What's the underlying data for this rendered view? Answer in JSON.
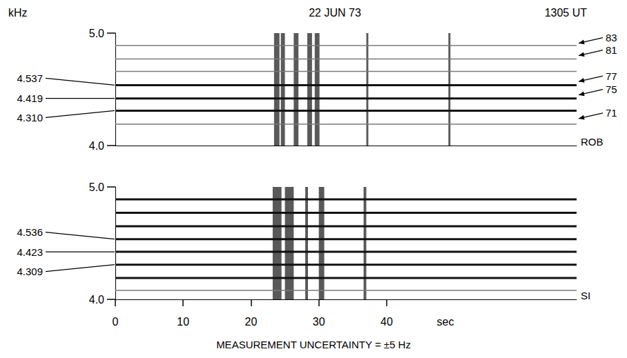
{
  "chart_data": [
    {
      "type": "spectrogram",
      "title": "22 JUN 73",
      "subtitle": "1305 UT",
      "ylabel": "kHz",
      "station": "ROB",
      "xlim": [
        0,
        68
      ],
      "ylim": [
        4,
        5
      ],
      "yticks": [
        {
          "value": 4,
          "label": "4.0"
        },
        {
          "value": 5,
          "label": "5.0"
        }
      ],
      "tick_labels": "y",
      "lines": [
        4.537,
        4.419,
        4.31
      ],
      "faint_lines": [
        4.19,
        4.66,
        4.77,
        4.89
      ],
      "bursts": [
        {
          "start": 23.4,
          "end": 24.2
        },
        {
          "start": 24.4,
          "end": 25.0
        },
        {
          "start": 26.3,
          "end": 27.0
        },
        {
          "start": 28.3,
          "end": 29.0
        },
        {
          "start": 29.4,
          "end": 30.1
        },
        {
          "start": 37.0,
          "end": 37.3
        },
        {
          "start": 49.1,
          "end": 49.4
        }
      ],
      "line_labels": [
        {
          "value": 4.537,
          "label": "4.537"
        },
        {
          "value": 4.419,
          "label": "4.419"
        },
        {
          "value": 4.31,
          "label": "4.310"
        }
      ],
      "harmonics": [
        {
          "n": 83,
          "freq": 4.91
        },
        {
          "n": 81,
          "freq": 4.8
        },
        {
          "n": 77,
          "freq": 4.57
        },
        {
          "n": 75,
          "freq": 4.45
        },
        {
          "n": 71,
          "freq": 4.24
        }
      ]
    },
    {
      "type": "spectrogram",
      "station": "SI",
      "xlabel": "sec",
      "caption": "MEASUREMENT UNCERTAINTY = ±5 Hz",
      "xlim": [
        0,
        68
      ],
      "xticks": [
        0,
        10,
        20,
        30,
        40
      ],
      "ylim": [
        4,
        5
      ],
      "yticks": [
        {
          "value": 4,
          "label": "4.0"
        },
        {
          "value": 5,
          "label": "5.0"
        }
      ],
      "tick_labels": true,
      "lines": [
        4.536,
        4.423,
        4.309,
        4.19,
        4.65,
        4.77,
        4.89
      ],
      "faint_lines": [
        4.08
      ],
      "bursts": [
        {
          "start": 23.2,
          "end": 24.5
        },
        {
          "start": 25.0,
          "end": 26.3
        },
        {
          "start": 28.0,
          "end": 28.4
        },
        {
          "start": 30.0,
          "end": 30.8
        },
        {
          "start": 36.6,
          "end": 37.0
        }
      ],
      "line_labels": [
        {
          "value": 4.536,
          "label": "4.536"
        },
        {
          "value": 4.423,
          "label": "4.423"
        },
        {
          "value": 4.309,
          "label": "4.309"
        }
      ]
    }
  ]
}
